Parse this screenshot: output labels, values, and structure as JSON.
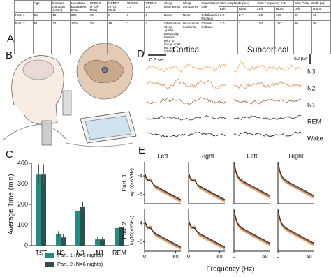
{
  "panel_labels": [
    "A",
    "B",
    "C",
    "D",
    "E"
  ],
  "table": {
    "headers": [
      "Age",
      "Disease Duration (years)",
      "Levodopa Equivalent Dose",
      "UPDRS - III (Off Med)",
      "UPDRS - III (On Med)",
      "UPDRS - 1.7",
      "UPDRS - 1.8",
      "Sleep Disorder(s)",
      "Sleep Symptoms",
      "Implantation Site",
      "Stim Amplitude (mA)",
      "Stim Frequency (Hz)",
      "Stim Pulse Width (µs)"
    ],
    "subheaders": [
      "Left",
      "Right",
      "Left",
      "Right",
      "Left",
      "Right"
    ],
    "rows": [
      {
        "label": "Part. 1",
        "cells": [
          58,
          10,
          800,
          49,
          5,
          0,
          0,
          "None",
          "None",
          "Subthalamic Nucleus",
          2.2,
          2.7,
          130,
          130,
          60,
          60
        ]
      },
      {
        "label": "Part. 2",
        "cells": [
          51,
          12,
          1404,
          39,
          16,
          2,
          2,
          "Obstructive Sleep Apnea (surgically treated prior to study; does not use CPAP)",
          "Occasional Insomnia",
          "Globus Pallidus",
          "3.0",
          3,
          150,
          150,
          90,
          90
        ]
      }
    ]
  },
  "chart_data": {
    "type": "bar",
    "ylabel": "Average Time (min)",
    "categories": [
      "TST",
      "N3",
      "N2",
      "N1",
      "REM"
    ],
    "series": [
      {
        "name": "Part. 1 (N=5 nights)",
        "color": "#1f8f84",
        "values": [
          345,
          55,
          170,
          30,
          85
        ],
        "errors": [
          50,
          15,
          25,
          10,
          20
        ]
      },
      {
        "name": "Part. 2 (N=6 nights)",
        "color": "#2f4f4f",
        "values": [
          345,
          40,
          190,
          30,
          90
        ],
        "errors": [
          50,
          15,
          25,
          10,
          20
        ]
      }
    ],
    "ylim": [
      0,
      400
    ],
    "yticks": [
      0,
      100,
      200,
      300,
      400
    ]
  },
  "traces": {
    "columns": [
      "Cortical",
      "Subcortical"
    ],
    "time_scale": "0.5 sec",
    "amp_scale": "50 µV",
    "stages": [
      {
        "name": "N3",
        "color": "#f4b26c"
      },
      {
        "name": "N2",
        "color": "#e28a4c"
      },
      {
        "name": "N1",
        "color": "#a8643a"
      },
      {
        "name": "REM",
        "color": "#4e3528"
      },
      {
        "name": "Wake",
        "color": "#111111"
      }
    ]
  },
  "spectra": {
    "columns": [
      "Left",
      "Right",
      "Left",
      "Right"
    ],
    "rows": [
      "Part. 1",
      "Part. 2"
    ],
    "ylabel": "log10(mV²/Hz)",
    "xlabel": "Frequency (Hz)",
    "xlim": [
      0,
      70
    ],
    "xticks": [
      0,
      60
    ],
    "ylim": [
      -7,
      -2.5
    ],
    "yticks": [
      -4,
      -6
    ]
  }
}
